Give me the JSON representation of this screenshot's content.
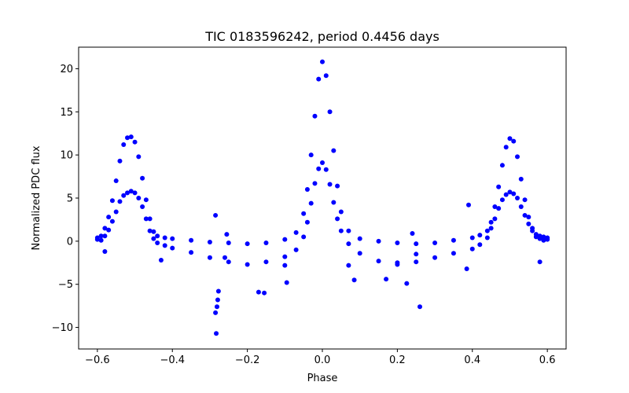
{
  "chart_data": {
    "type": "scatter",
    "title": "TIC 0183596242, period 0.4456 days",
    "xlabel": "Phase",
    "ylabel": "Normalized PDC flux",
    "xlim": [
      -0.65,
      0.65
    ],
    "ylim": [
      -12.5,
      22.5
    ],
    "grid": false,
    "x_ticks": [
      -0.6,
      -0.4,
      -0.2,
      0.0,
      0.2,
      0.4,
      0.6
    ],
    "x_tick_labels": [
      "−0.6",
      "−0.4",
      "−0.2",
      "0.0",
      "0.2",
      "0.4",
      "0.6"
    ],
    "y_ticks": [
      -10,
      -5,
      0,
      5,
      10,
      15,
      20
    ],
    "y_tick_labels": [
      "−10",
      "−5",
      "0",
      "5",
      "10",
      "15",
      "20"
    ],
    "marker_color": "#0000ff",
    "series": [
      {
        "x": [
          -0.6,
          -0.59,
          -0.58,
          -0.57,
          -0.56,
          -0.55,
          -0.54,
          -0.53,
          -0.52,
          -0.51,
          -0.5,
          -0.49,
          -0.48,
          -0.47,
          -0.46,
          -0.45,
          -0.44,
          -0.42,
          -0.4,
          -0.35,
          -0.3,
          -0.25,
          -0.2,
          -0.15,
          -0.1,
          -0.07,
          -0.05,
          -0.04,
          -0.03,
          -0.02,
          -0.01,
          0.0,
          0.01,
          0.02,
          0.03,
          0.04,
          0.05,
          0.07,
          0.1,
          0.15,
          0.2,
          0.25,
          0.3,
          0.35,
          0.4,
          0.42,
          0.44,
          0.45,
          0.46,
          0.47,
          0.48,
          0.49,
          0.5,
          0.51,
          0.52,
          0.53,
          0.54,
          0.55,
          0.56,
          0.57,
          0.58,
          0.59,
          0.6
        ],
        "y": [
          0.4,
          0.6,
          1.5,
          2.8,
          4.7,
          7.0,
          9.3,
          11.2,
          12.0,
          12.1,
          11.5,
          9.8,
          7.3,
          4.8,
          2.6,
          1.1,
          0.6,
          0.4,
          0.3,
          0.1,
          -0.1,
          -0.2,
          -0.3,
          -0.2,
          0.2,
          1.0,
          3.2,
          6.0,
          10.0,
          14.5,
          18.8,
          20.8,
          19.2,
          15.0,
          10.5,
          6.4,
          3.4,
          1.2,
          0.3,
          0.0,
          -0.2,
          -0.3,
          -0.2,
          0.1,
          0.4,
          0.7,
          1.2,
          2.2,
          4.0,
          6.3,
          8.8,
          10.9,
          11.9,
          11.6,
          9.8,
          7.2,
          4.8,
          2.8,
          1.5,
          0.8,
          0.6,
          0.5,
          0.4
        ]
      },
      {
        "x": [
          -0.6,
          -0.59,
          -0.58,
          -0.57,
          -0.56,
          -0.55,
          -0.54,
          -0.53,
          -0.52,
          -0.51,
          -0.5,
          -0.49,
          -0.48,
          -0.47,
          -0.46,
          -0.45,
          -0.44,
          -0.42,
          -0.4,
          -0.35,
          -0.3,
          -0.25,
          -0.2,
          -0.15,
          -0.1,
          -0.07,
          -0.05,
          -0.04,
          -0.03,
          -0.02,
          -0.01,
          0.0,
          0.01,
          0.02,
          0.03,
          0.04,
          0.05,
          0.07,
          0.1,
          0.15,
          0.2,
          0.25,
          0.3,
          0.35,
          0.4,
          0.42,
          0.44,
          0.45,
          0.46,
          0.47,
          0.48,
          0.49,
          0.5,
          0.51,
          0.52,
          0.53,
          0.54,
          0.55,
          0.56,
          0.57,
          0.58,
          0.59,
          0.6
        ],
        "y": [
          0.2,
          0.1,
          0.6,
          1.3,
          2.3,
          3.4,
          4.6,
          5.3,
          5.6,
          5.8,
          5.6,
          5.0,
          4.0,
          2.6,
          1.2,
          0.3,
          -0.2,
          -0.5,
          -0.8,
          -1.3,
          -1.9,
          -2.4,
          -2.7,
          -2.4,
          -1.8,
          -1.0,
          0.5,
          2.2,
          4.4,
          6.7,
          8.4,
          9.1,
          8.3,
          6.6,
          4.5,
          2.6,
          1.2,
          -0.3,
          -1.4,
          -2.3,
          -2.7,
          -2.4,
          -1.9,
          -1.4,
          -0.9,
          -0.4,
          0.4,
          1.5,
          2.6,
          3.8,
          4.8,
          5.4,
          5.7,
          5.5,
          5.0,
          4.0,
          3.0,
          2.0,
          1.2,
          0.5,
          0.3,
          0.1,
          0.2
        ]
      },
      {
        "x": [
          -0.285,
          -0.283,
          -0.281,
          -0.279,
          -0.277,
          -0.285,
          -0.255,
          -0.17,
          -0.155,
          -0.1,
          -0.095,
          0.07,
          0.085,
          0.17,
          0.2,
          0.225,
          0.24,
          0.26,
          0.385,
          0.39,
          -0.43,
          -0.58,
          0.58,
          -0.26,
          0.25
        ],
        "y": [
          -8.3,
          -10.7,
          -7.6,
          -6.8,
          -5.8,
          3.0,
          0.8,
          -5.9,
          -6.0,
          -2.8,
          -4.8,
          -2.8,
          -4.5,
          -4.4,
          -2.5,
          -4.9,
          0.9,
          -7.6,
          -3.2,
          4.2,
          -2.2,
          -1.2,
          -2.4,
          -1.9,
          -1.5
        ]
      }
    ]
  }
}
